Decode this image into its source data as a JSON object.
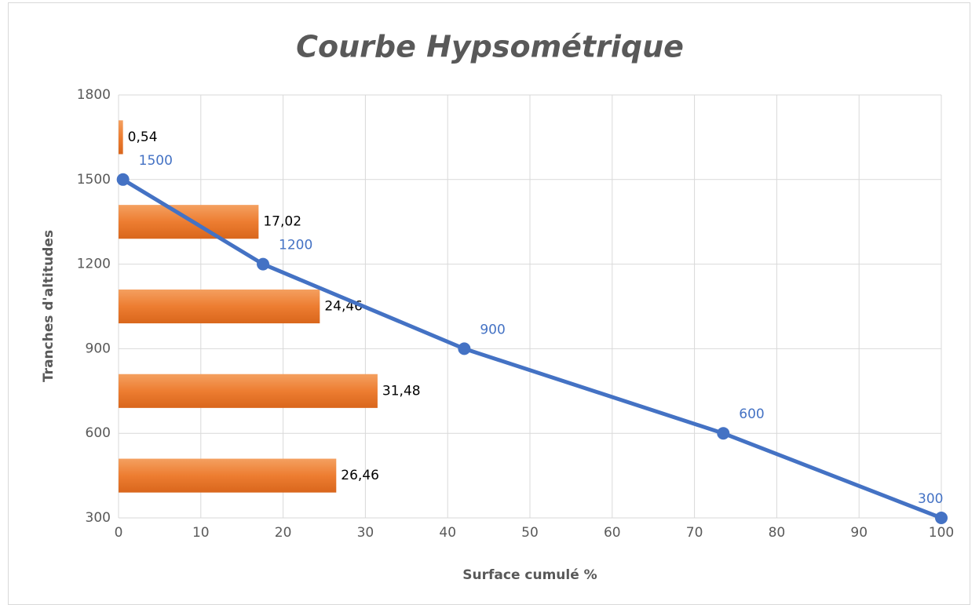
{
  "chart_data": {
    "type": "combo",
    "title": "Courbe Hypsométrique",
    "xlabel": "Surface cumulé %",
    "ylabel": "Tranches d'altitudes",
    "xlim": [
      0,
      100
    ],
    "xticks": [
      0,
      10,
      20,
      30,
      40,
      50,
      60,
      70,
      80,
      90,
      100
    ],
    "ylim": [
      300,
      1800
    ],
    "yticks": [
      300,
      600,
      900,
      1200,
      1500,
      1800
    ],
    "grid": true,
    "bars": {
      "color": "#ed7d31",
      "y": [
        1650,
        1350,
        1050,
        750,
        450
      ],
      "values": [
        0.54,
        17.02,
        24.46,
        31.48,
        26.46
      ],
      "value_labels": [
        "0,54",
        "17,02",
        "24,46",
        "31,48",
        "26,46"
      ]
    },
    "line": {
      "color": "#4472c4",
      "x": [
        0.54,
        17.56,
        42.02,
        73.5,
        100
      ],
      "values": [
        1500,
        1200,
        900,
        600,
        300
      ]
    }
  }
}
